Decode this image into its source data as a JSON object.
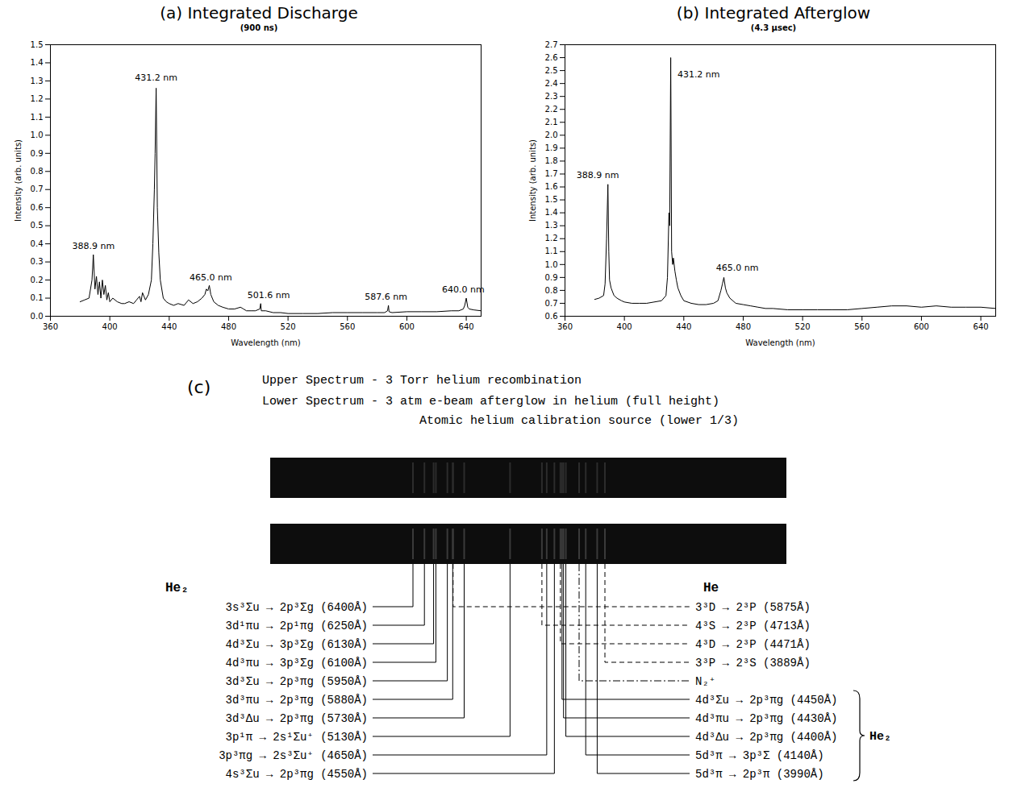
{
  "chart_data": [
    {
      "type": "line",
      "title": "(a) Integrated Discharge",
      "subtitle": "(900 ns)",
      "x_label": "Wavelength (nm)",
      "y_label": "Intensity (arb. units)",
      "color": "#000000",
      "xlim": [
        360,
        650
      ],
      "xticks": [
        360,
        400,
        440,
        480,
        520,
        560,
        600,
        640
      ],
      "ylim": [
        0,
        1.5
      ],
      "yticks": [
        {
          "value": 0,
          "label": "0.0"
        },
        0.1,
        0.2,
        0.3,
        0.4,
        0.5,
        0.6,
        0.7,
        0.8,
        0.9,
        {
          "value": 1,
          "label": "1.0"
        },
        1.1,
        1.2,
        1.3,
        1.4,
        1.5
      ],
      "x": [
        380,
        383,
        386,
        388,
        388.9,
        390,
        391,
        392,
        393,
        394,
        395,
        396,
        397,
        398,
        399,
        400,
        402,
        405,
        408,
        410,
        413,
        416,
        418,
        420,
        421,
        422,
        424,
        426,
        428,
        429,
        430,
        430.5,
        431.2,
        432,
        433,
        434,
        436,
        438,
        440,
        443,
        446,
        450,
        453,
        456,
        459,
        462,
        464,
        465,
        466,
        467,
        468,
        470,
        473,
        476,
        480,
        484,
        488,
        490,
        492,
        495,
        498,
        501,
        501.6,
        502,
        505,
        510,
        515,
        520,
        530,
        540,
        550,
        560,
        570,
        580,
        585,
        587,
        587.6,
        588,
        590,
        600,
        610,
        620,
        630,
        635,
        638,
        639,
        640,
        641,
        642,
        645,
        650
      ],
      "values": [
        0.08,
        0.09,
        0.1,
        0.2,
        0.34,
        0.15,
        0.22,
        0.12,
        0.19,
        0.1,
        0.2,
        0.12,
        0.17,
        0.09,
        0.13,
        0.08,
        0.1,
        0.08,
        0.07,
        0.07,
        0.08,
        0.07,
        0.09,
        0.11,
        0.08,
        0.13,
        0.09,
        0.12,
        0.2,
        0.4,
        0.7,
        0.9,
        1.26,
        0.6,
        0.35,
        0.2,
        0.1,
        0.08,
        0.07,
        0.06,
        0.07,
        0.06,
        0.09,
        0.07,
        0.08,
        0.1,
        0.12,
        0.15,
        0.14,
        0.17,
        0.12,
        0.08,
        0.06,
        0.05,
        0.04,
        0.04,
        0.05,
        0.04,
        0.03,
        0.03,
        0.03,
        0.04,
        0.07,
        0.03,
        0.03,
        0.02,
        0.02,
        0.015,
        0.015,
        0.015,
        0.02,
        0.02,
        0.02,
        0.02,
        0.02,
        0.03,
        0.06,
        0.025,
        0.02,
        0.025,
        0.025,
        0.025,
        0.03,
        0.03,
        0.04,
        0.06,
        0.1,
        0.05,
        0.04,
        0.035,
        0.03
      ],
      "annotations": [
        {
          "text": "388.9 nm",
          "x": 389,
          "y": 0.37
        },
        {
          "text": "431.2 nm",
          "x": 431.2,
          "y": 1.3
        },
        {
          "text": "465.0 nm",
          "x": 468,
          "y": 0.2
        },
        {
          "text": "501.6 nm",
          "x": 507,
          "y": 0.1
        },
        {
          "text": "587.6 nm",
          "x": 586,
          "y": 0.09
        },
        {
          "text": "640.0 nm",
          "x": 638,
          "y": 0.13
        }
      ]
    },
    {
      "type": "line",
      "title": "(b) Integrated Afterglow",
      "subtitle": "(4.3 μsec)",
      "x_label": "Wavelength (nm)",
      "y_label": "Intensity (arb. units)",
      "color": "#000000",
      "xlim": [
        360,
        650
      ],
      "xticks": [
        360,
        400,
        440,
        480,
        520,
        560,
        600,
        640
      ],
      "ylim": [
        0.6,
        2.7
      ],
      "yticks": [
        0.6,
        0.7,
        0.8,
        0.9,
        {
          "value": 1,
          "label": "1.0"
        },
        1.1,
        1.2,
        1.3,
        1.4,
        1.5,
        1.6,
        1.7,
        1.8,
        1.9,
        {
          "value": 2,
          "label": "2.0"
        },
        2.1,
        2.2,
        2.3,
        2.4,
        2.5,
        2.6,
        2.7
      ],
      "x": [
        380,
        383,
        386,
        387,
        388,
        388.9,
        389.5,
        390,
        391,
        393,
        395,
        398,
        400,
        405,
        410,
        415,
        420,
        425,
        428,
        429,
        430,
        430.5,
        431.2,
        431.8,
        432.5,
        433,
        434,
        435,
        436,
        438,
        440,
        445,
        450,
        455,
        460,
        463,
        465,
        466,
        467,
        468,
        469,
        471,
        475,
        480,
        485,
        490,
        495,
        500,
        510,
        520,
        530,
        540,
        550,
        560,
        570,
        580,
        590,
        600,
        610,
        620,
        630,
        640,
        650
      ],
      "values": [
        0.73,
        0.74,
        0.76,
        0.85,
        1.2,
        1.62,
        1.1,
        0.88,
        0.82,
        0.76,
        0.74,
        0.72,
        0.71,
        0.7,
        0.7,
        0.7,
        0.71,
        0.72,
        0.76,
        0.9,
        1.4,
        1.3,
        2.6,
        1.1,
        1.0,
        1.05,
        0.95,
        0.88,
        0.82,
        0.76,
        0.72,
        0.7,
        0.69,
        0.69,
        0.7,
        0.72,
        0.8,
        0.85,
        0.9,
        0.82,
        0.78,
        0.74,
        0.7,
        0.69,
        0.68,
        0.67,
        0.66,
        0.66,
        0.65,
        0.65,
        0.65,
        0.65,
        0.65,
        0.66,
        0.67,
        0.68,
        0.68,
        0.67,
        0.68,
        0.67,
        0.67,
        0.67,
        0.66
      ],
      "annotations": [
        {
          "text": "388.9 nm",
          "x": 382,
          "y": 1.67
        },
        {
          "text": "431.2 nm",
          "x": 450,
          "y": 2.45
        },
        {
          "text": "465.0 nm",
          "x": 476,
          "y": 0.95
        }
      ]
    }
  ],
  "panel_c": {
    "label": "(c)",
    "headings": [
      "Upper Spectrum - 3 Torr helium recombination",
      "Lower Spectrum - 3 atm e-beam afterglow in helium (full height)",
      "Atomic helium calibration source (lower 1/3)"
    ],
    "left_header": "He₂",
    "left_lines": [
      {
        "label": "3s³Σu → 2p³Σg (6400Å)",
        "line_style": "solid"
      },
      {
        "label": "3d¹πu → 2p¹πg (6250Å)",
        "line_style": "solid"
      },
      {
        "label": "4d³Σu → 3p³Σg (6130Å)",
        "line_style": "solid"
      },
      {
        "label": "4d³πu → 3p³Σg (6100Å)",
        "line_style": "solid"
      },
      {
        "label": "3d³Σu → 2p³πg (5950Å)",
        "line_style": "solid"
      },
      {
        "label": "3d³πu → 2p³πg (5880Å)",
        "line_style": "solid"
      },
      {
        "label": "3d³Δu → 2p³πg (5730Å)",
        "line_style": "solid"
      },
      {
        "label": "3p¹π → 2s¹Σu⁺ (5130Å)",
        "line_style": "solid"
      },
      {
        "label": "3p³πg → 2s³Σu⁺ (4650Å)",
        "line_style": "solid"
      },
      {
        "label": "4s³Σu → 2p³πg (4550Å)",
        "line_style": "solid"
      }
    ],
    "right_header": "He",
    "right_lines": [
      {
        "label": "3³D → 2³P (5875Å)",
        "line_style": "dashed"
      },
      {
        "label": "4³S → 2³P (4713Å)",
        "line_style": "dashed"
      },
      {
        "label": "4³D → 2³P (4471Å)",
        "line_style": "dashed"
      },
      {
        "label": "3³P → 2³S (3889Å)",
        "line_style": "dashed"
      },
      {
        "label": "N₂⁺",
        "line_style": "dashdot"
      },
      {
        "label": "4d³Σu → 2p³πg (4450Å)",
        "line_style": "solid"
      },
      {
        "label": "4d³πu → 2p³πg (4430Å)",
        "line_style": "solid"
      },
      {
        "label": "4d³Δu → 2p³πg (4400Å)",
        "line_style": "solid"
      },
      {
        "label": "5d³π → 3p³Σ (4140Å)",
        "line_style": "solid"
      },
      {
        "label": "5d³π → 2p³π (3990Å)",
        "line_style": "solid"
      }
    ],
    "bracket_label": "He₂"
  }
}
